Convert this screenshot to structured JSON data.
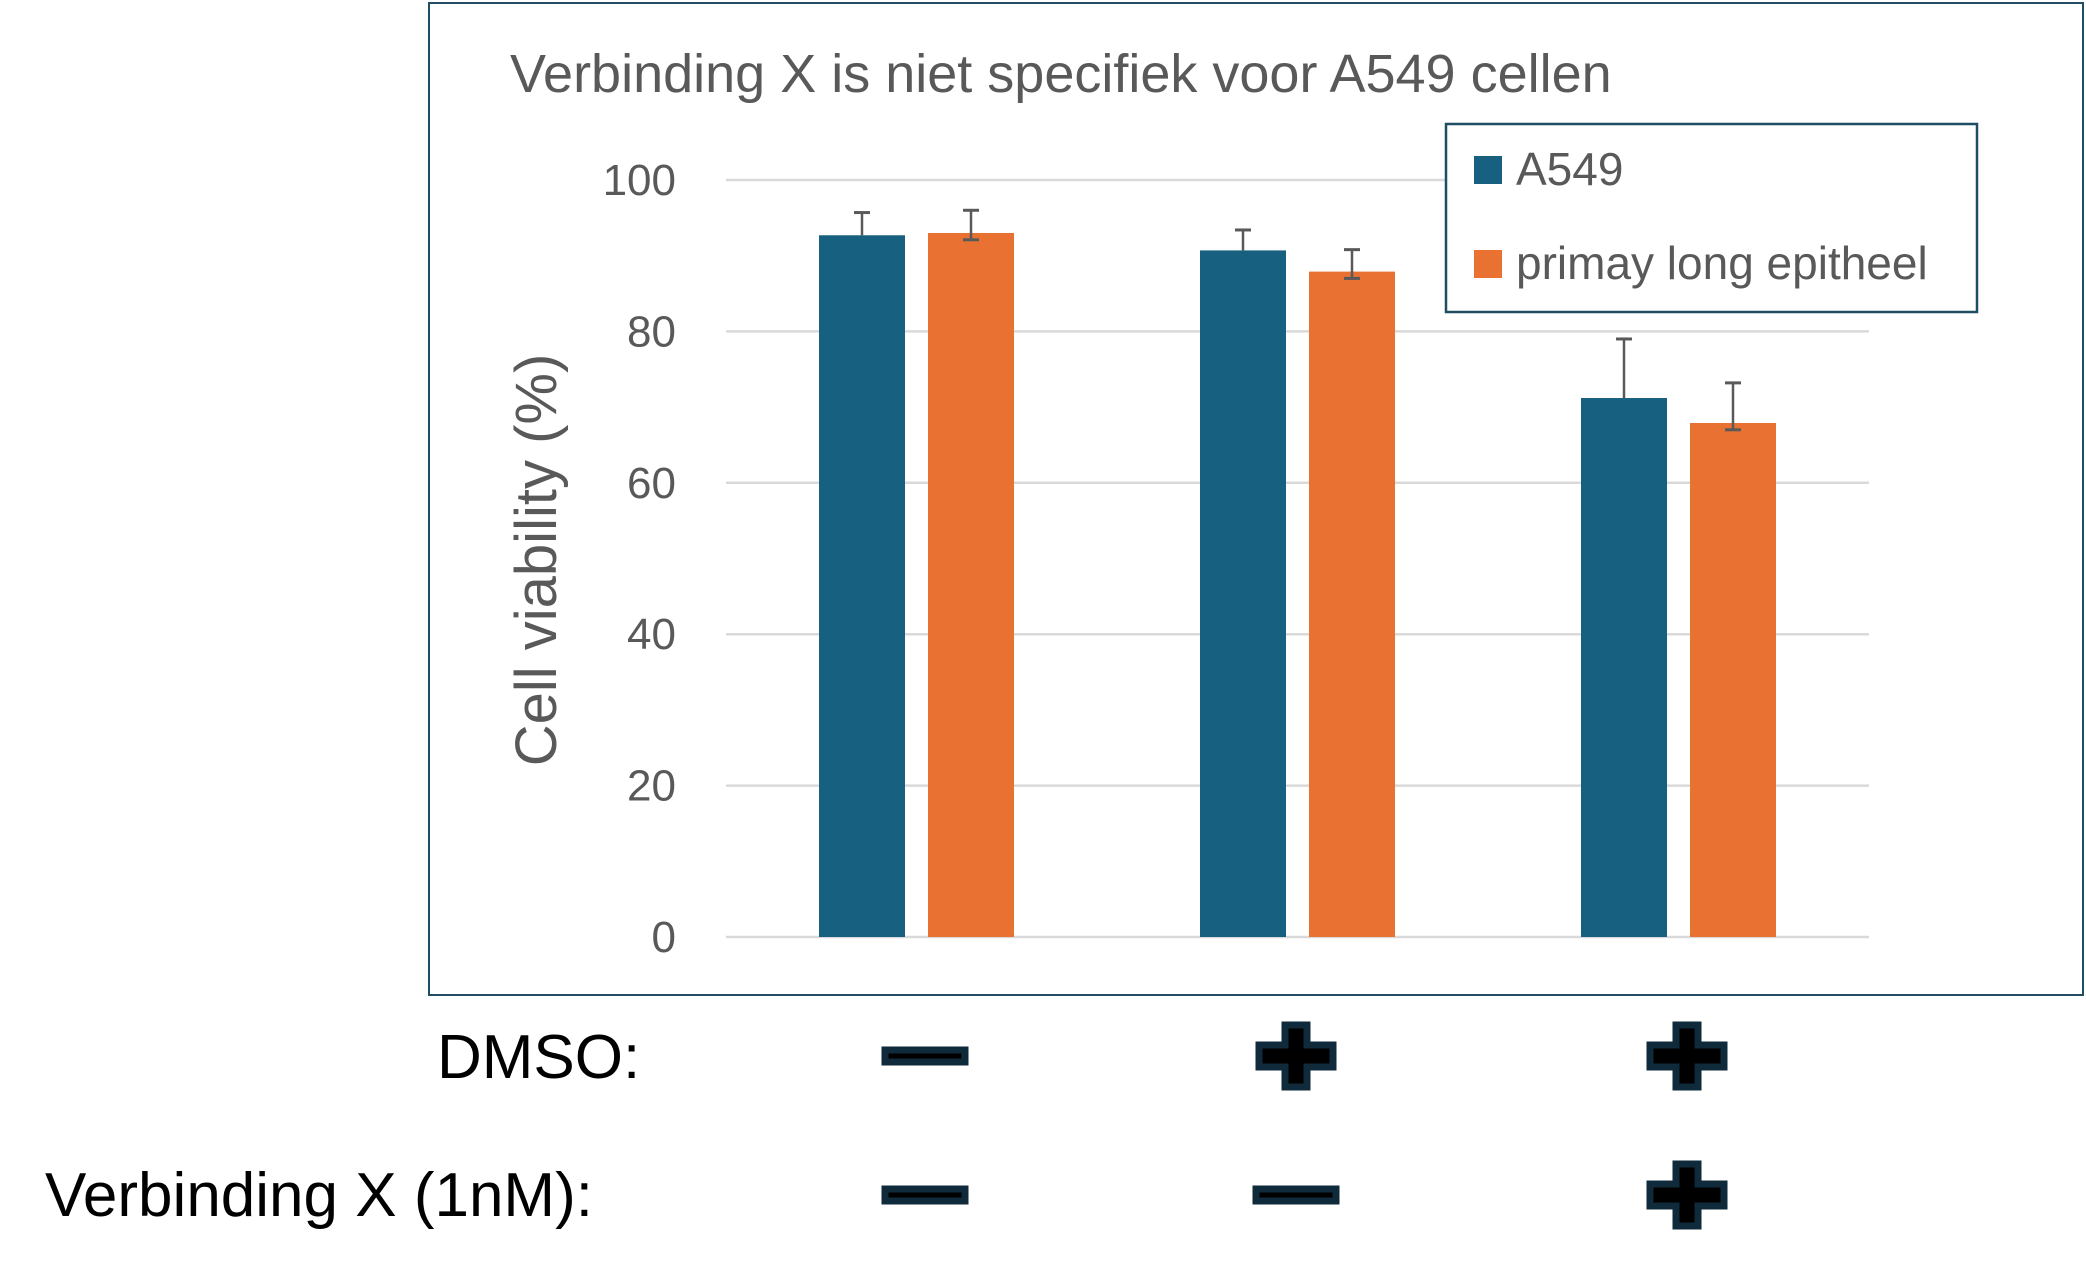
{
  "chart_data": {
    "type": "bar",
    "title": "Verbinding X is niet specifiek voor A549 cellen",
    "xlabel": "",
    "ylabel": "Cell viability (%)",
    "ylim": [
      0,
      100
    ],
    "yticks": [
      "0",
      "20",
      "40",
      "60",
      "80",
      "100"
    ],
    "grid": true,
    "legend_position": "top-right",
    "categories": [
      "DMSO − / Verbinding X −",
      "DMSO + / Verbinding X −",
      "DMSO + / Verbinding X +"
    ],
    "series": [
      {
        "name": "A549",
        "color": "#17607f",
        "values": [
          92.7,
          90.7,
          71.2
        ],
        "error_plus": [
          3.0,
          2.7,
          7.8
        ],
        "error_minus": [
          0,
          0,
          0
        ]
      },
      {
        "name": "primay long epitheel",
        "color": "#e97132",
        "values": [
          93.0,
          87.9,
          67.9
        ],
        "error_plus": [
          3.0,
          2.9,
          5.3
        ],
        "error_minus": [
          0.9,
          0.9,
          0.9
        ]
      }
    ]
  },
  "conditions": {
    "rows": [
      {
        "label": "DMSO:",
        "signs": [
          "-",
          "+",
          "+"
        ]
      },
      {
        "label": "Verbinding X (1nM):",
        "signs": [
          "-",
          "-",
          "+"
        ]
      }
    ],
    "sign_fill": "#000000",
    "sign_outline": "#0f2a3a"
  },
  "colors": {
    "frame": "#1f4e63",
    "grid": "#d9d9d9",
    "text": "#595959",
    "error_bar": "#595959"
  }
}
